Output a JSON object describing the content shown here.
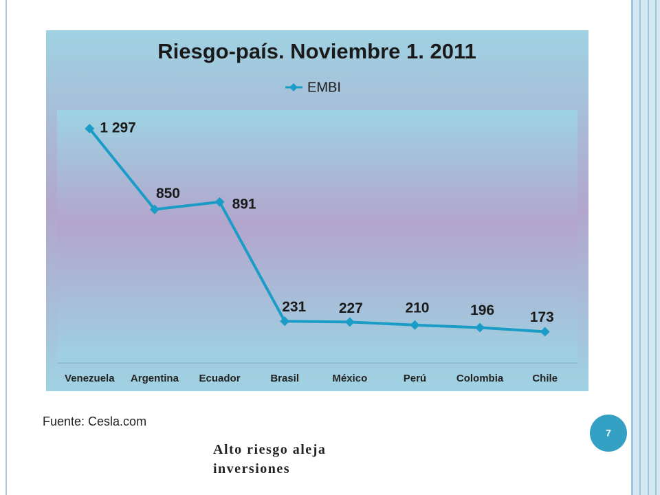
{
  "chart_data": {
    "type": "line",
    "title": "Riesgo-país. Noviembre 1. 2011",
    "categories": [
      "Venezuela",
      "Argentina",
      "Ecuador",
      "Brasil",
      "México",
      "Perú",
      "Colombia",
      "Chile"
    ],
    "series": [
      {
        "name": "EMBI",
        "color": "#1b9cc6",
        "values": [
          1297,
          850,
          891,
          231,
          227,
          210,
          196,
          173
        ],
        "value_labels": [
          "1 297",
          "850",
          "891",
          "231",
          "227",
          "210",
          "196",
          "173"
        ]
      }
    ],
    "ylim": [
      0,
      1400
    ],
    "legend": "top"
  },
  "source": "Fuente: Cesla.com",
  "page_number": "7",
  "caption": "Alto riesgo aleja inversiones"
}
